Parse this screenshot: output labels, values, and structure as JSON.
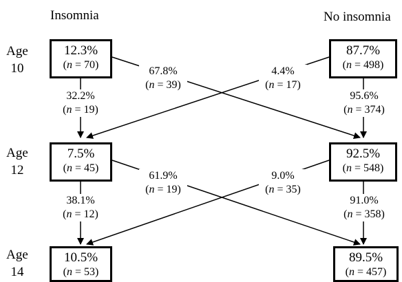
{
  "headings": {
    "left": "Insomnia",
    "right": "No insomnia"
  },
  "ages": [
    {
      "line1": "Age",
      "line2": "10"
    },
    {
      "line1": "Age",
      "line2": "12"
    },
    {
      "line1": "Age",
      "line2": "14"
    }
  ],
  "nodes": {
    "ins10": {
      "pct": "12.3%",
      "n": "70"
    },
    "no10": {
      "pct": "87.7%",
      "n": "498"
    },
    "ins12": {
      "pct": "7.5%",
      "n": "45"
    },
    "no12": {
      "pct": "92.5%",
      "n": "548"
    },
    "ins14": {
      "pct": "10.5%",
      "n": "53"
    },
    "no14": {
      "pct": "89.5%",
      "n": "457"
    }
  },
  "transitions": {
    "ins10_ins12": {
      "pct": "32.2%",
      "n": "19"
    },
    "ins10_no12": {
      "pct": "67.8%",
      "n": "39"
    },
    "no10_ins12": {
      "pct": "4.4%",
      "n": "17"
    },
    "no10_no12": {
      "pct": "95.6%",
      "n": "374"
    },
    "ins12_ins14": {
      "pct": "38.1%",
      "n": "12"
    },
    "ins12_no14": {
      "pct": "61.9%",
      "n": "19"
    },
    "no12_ins14": {
      "pct": "9.0%",
      "n": "35"
    },
    "no12_no14": {
      "pct": "91.0%",
      "n": "358"
    }
  },
  "n_symbol": "n"
}
